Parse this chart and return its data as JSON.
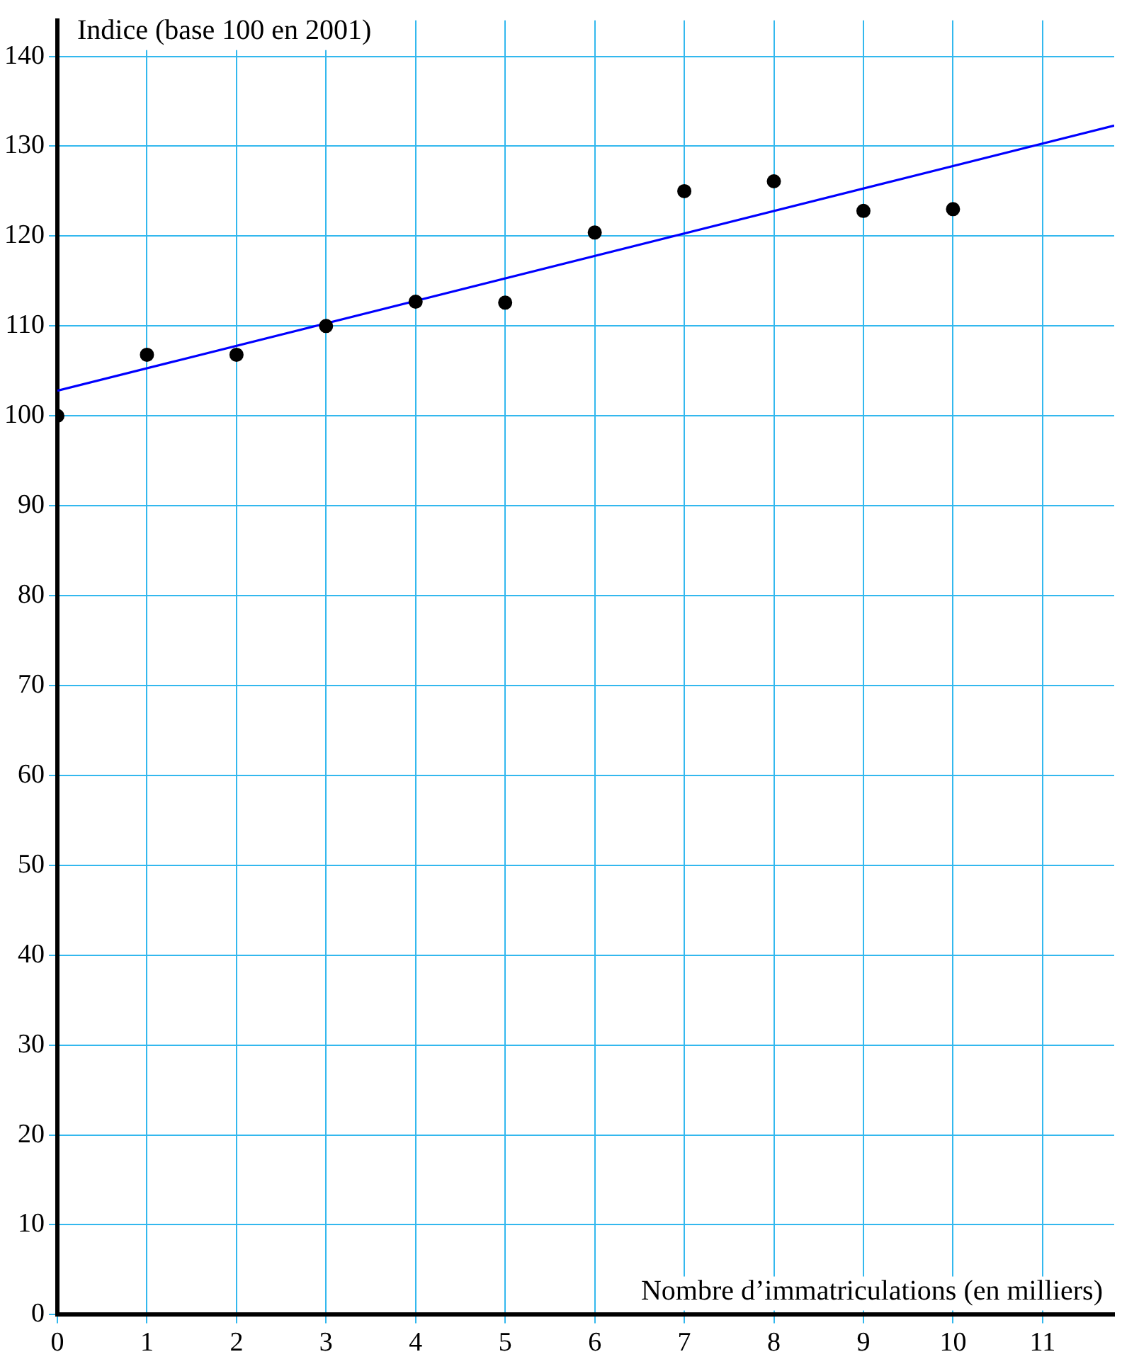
{
  "chart_data": {
    "type": "scatter",
    "xlabel": "Nombre d’immatriculations (en milliers)",
    "ylabel": "Indice (base 100 en 2001)",
    "xlim": [
      0,
      11.8
    ],
    "xticks": [
      0,
      1,
      2,
      3,
      4,
      5,
      6,
      7,
      8,
      9,
      10,
      11
    ],
    "ylim": [
      0,
      144
    ],
    "yticks": [
      0,
      10,
      20,
      30,
      40,
      50,
      60,
      70,
      80,
      90,
      100,
      110,
      120,
      130,
      140
    ],
    "grid": true,
    "legend": false,
    "marker": "circle",
    "series": [
      {
        "type": "scatter",
        "color": "#000000",
        "x": [
          0,
          1,
          2,
          3,
          4,
          5,
          6,
          7,
          8,
          9,
          10
        ],
        "values": [
          100,
          106.8,
          106.8,
          110,
          112.7,
          112.6,
          120.4,
          125,
          126.1,
          122.8,
          123
        ]
      },
      {
        "type": "line",
        "color": "#0000ff",
        "line_style": "solid",
        "marker": "none",
        "x": [
          0,
          11.8
        ],
        "values": [
          102.8,
          132.3
        ]
      }
    ]
  }
}
